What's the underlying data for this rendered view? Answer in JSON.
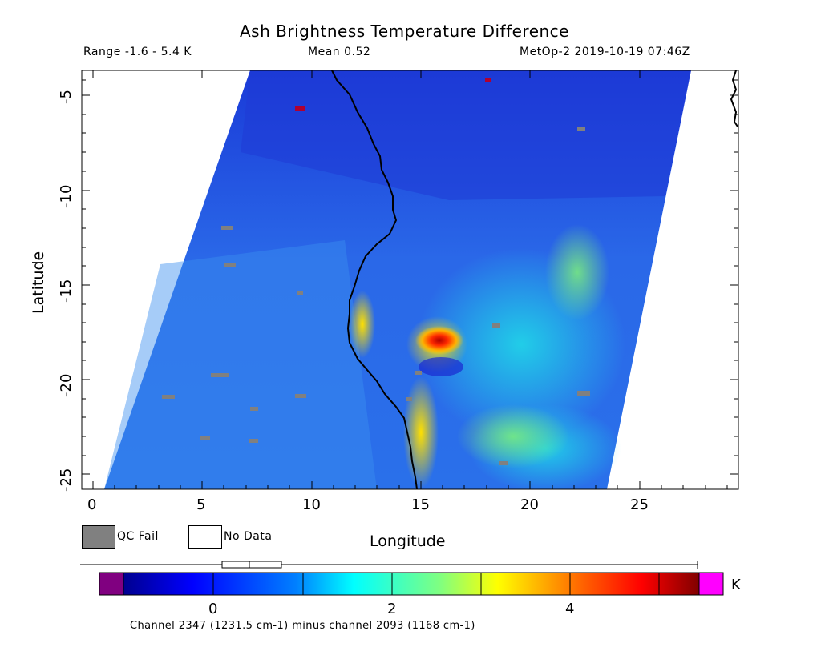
{
  "header": {
    "title": "Ash Brightness Temperature Difference",
    "range": "Range -1.6 - 5.4 K",
    "mean": "Mean 0.52",
    "satellite": "MetOp-2 2019-10-19 07:46Z"
  },
  "map": {
    "x_label": "Longitude",
    "y_label": "Latitude",
    "x_ticks": [
      "0",
      "5",
      "10",
      "15",
      "20",
      "25"
    ],
    "y_ticks": [
      "-5",
      "-10",
      "-15",
      "-20",
      "-25"
    ],
    "lon_range": [
      -0.5,
      29.5
    ],
    "lat_range": [
      -26,
      -4
    ]
  },
  "legend": {
    "qc_fail": "QC Fail",
    "no_data": "No Data",
    "qc_color": "#808080"
  },
  "colorbar": {
    "ticks": [
      "0",
      "2",
      "4"
    ],
    "unit": "K",
    "range": [
      -1.6,
      5.4
    ],
    "under_color": "#800080",
    "over_color": "#ff00ff",
    "caption": "Channel 2347 (1231.5 cm-1) minus channel 2093 (1168 cm-1)"
  }
}
